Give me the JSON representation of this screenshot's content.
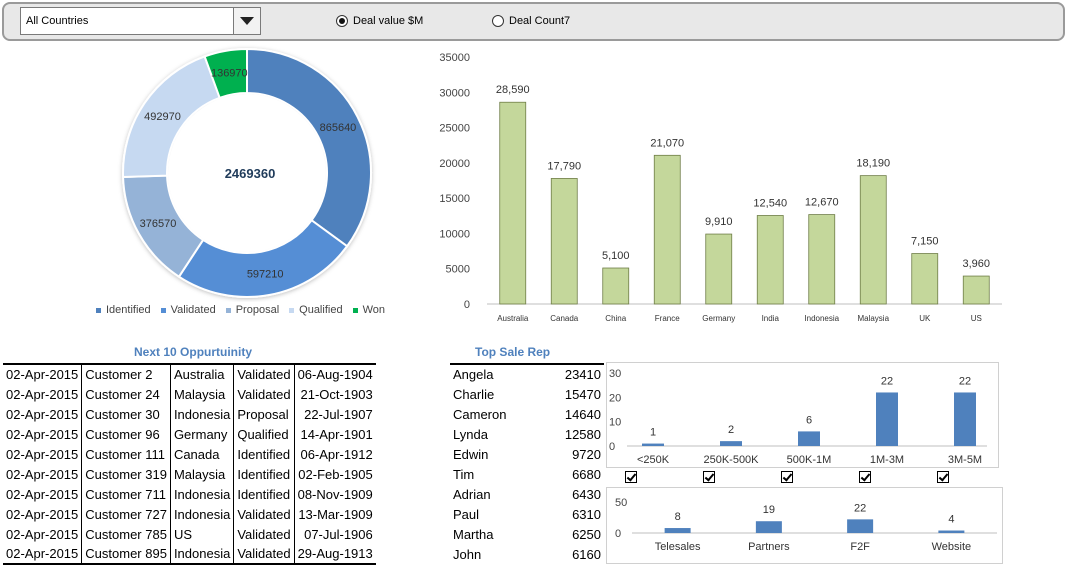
{
  "filter": {
    "country_select": "All Countries",
    "radio_deal_value": "Deal value $M",
    "radio_deal_count": "Deal Count7",
    "selected": "deal_value"
  },
  "donut": {
    "total": "2469360",
    "legend": [
      "Identified",
      "Validated",
      "Proposal",
      "Qualified",
      "Won"
    ]
  },
  "opportunity": {
    "title": "Next 10 Oppurtuinity",
    "rows": [
      [
        "02-Apr-2015",
        "Customer 2",
        "Australia",
        "Validated",
        "06-Aug-1904"
      ],
      [
        "02-Apr-2015",
        "Customer 24",
        "Malaysia",
        "Validated",
        "21-Oct-1903"
      ],
      [
        "02-Apr-2015",
        "Customer 30",
        "Indonesia",
        "Proposal",
        "22-Jul-1907"
      ],
      [
        "02-Apr-2015",
        "Customer 96",
        "Germany",
        "Qualified",
        "14-Apr-1901"
      ],
      [
        "02-Apr-2015",
        "Customer 111",
        "Canada",
        "Identified",
        "06-Apr-1912"
      ],
      [
        "02-Apr-2015",
        "Customer 319",
        "Malaysia",
        "Identified",
        "02-Feb-1905"
      ],
      [
        "02-Apr-2015",
        "Customer 711",
        "Indonesia",
        "Identified",
        "08-Nov-1909"
      ],
      [
        "02-Apr-2015",
        "Customer 727",
        "Indonesia",
        "Validated",
        "13-Mar-1909"
      ],
      [
        "02-Apr-2015",
        "Customer 785",
        "US",
        "Validated",
        "07-Jul-1906"
      ],
      [
        "02-Apr-2015",
        "Customer 895",
        "Indonesia",
        "Validated",
        "29-Aug-1913"
      ]
    ]
  },
  "reps": {
    "title": "Top Sale Rep",
    "rows": [
      [
        "Angela",
        "23410"
      ],
      [
        "Charlie",
        "15470"
      ],
      [
        "Cameron",
        "14640"
      ],
      [
        "Lynda",
        "12580"
      ],
      [
        "Edwin",
        "9720"
      ],
      [
        "Tim",
        "6680"
      ],
      [
        "Adrian",
        "6430"
      ],
      [
        "Paul",
        "6310"
      ],
      [
        "Martha",
        "6250"
      ],
      [
        "John",
        "6160"
      ]
    ]
  },
  "colors": {
    "identified": "#4f81bd",
    "validated": "#558ed5",
    "proposal": "#95b3d7",
    "qualified": "#c6d9f1",
    "won": "#00b050",
    "bar_green": "#c4d79b",
    "bar_blue": "#4f81bd",
    "title_blue": "#4f81bd"
  },
  "chart_data": [
    {
      "type": "pie",
      "categories": [
        "Identified",
        "Validated",
        "Proposal",
        "Qualified",
        "Won"
      ],
      "values": [
        865640,
        597210,
        376570,
        492970,
        136970
      ],
      "center_label": "2469360"
    },
    {
      "type": "bar",
      "categories": [
        "Australia",
        "Canada",
        "China",
        "France",
        "Germany",
        "India",
        "Indonesia",
        "Malaysia",
        "UK",
        "US"
      ],
      "values": [
        28590,
        17790,
        5100,
        21070,
        9910,
        12540,
        12670,
        18190,
        7150,
        3960
      ],
      "value_labels": [
        "28,590",
        "17,790",
        "5,100",
        "21,070",
        "9,910",
        "12,540",
        "12,670",
        "18,190",
        "7,150",
        "3,960"
      ],
      "ylim": [
        0,
        35000
      ],
      "yticks": [
        "0",
        "5000",
        "10000",
        "15000",
        "20000",
        "25000",
        "30000",
        "35000"
      ]
    },
    {
      "type": "bar",
      "categories": [
        "<250K",
        "250K-500K",
        "500K-1M",
        "1M-3M",
        "3M-5M"
      ],
      "values": [
        1,
        2,
        6,
        22,
        22
      ],
      "ylim": [
        0,
        30
      ],
      "yticks": [
        "0",
        "10",
        "20",
        "30"
      ]
    },
    {
      "type": "bar",
      "categories": [
        "Telesales",
        "Partners",
        "F2F",
        "Website"
      ],
      "values": [
        8,
        19,
        22,
        4
      ],
      "ylim": [
        0,
        50
      ],
      "yticks": [
        "0",
        "50"
      ]
    }
  ]
}
